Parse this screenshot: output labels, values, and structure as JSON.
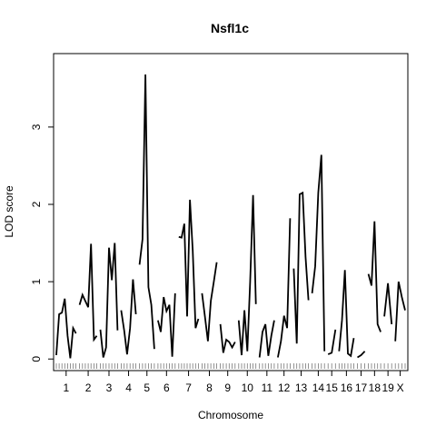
{
  "chart_data": {
    "type": "line",
    "title": "Nsfl1c",
    "xlabel": "Chromosome",
    "ylabel": "LOD score",
    "ylim": [
      -0.15,
      3.95
    ],
    "yticks": [
      0,
      1,
      2,
      3
    ],
    "grid": false,
    "chromosomes": [
      {
        "label": "1",
        "lods": [
          0.05,
          0.58,
          0.6,
          0.78,
          0.3,
          0.01,
          0.4,
          0.33
        ]
      },
      {
        "label": "2",
        "lods": [
          0.7,
          0.83,
          0.75,
          0.67,
          1.49,
          0.25,
          0.3
        ]
      },
      {
        "label": "3",
        "lods": [
          0.38,
          0.02,
          0.15,
          1.44,
          1.02,
          1.5,
          0.37
        ]
      },
      {
        "label": "4",
        "lods": [
          0.63,
          0.37,
          0.06,
          0.4,
          1.03,
          0.58
        ]
      },
      {
        "label": "5",
        "lods": [
          1.22,
          1.55,
          3.68,
          0.93,
          0.7,
          0.13
        ]
      },
      {
        "label": "6",
        "lods": [
          0.5,
          0.35,
          0.8,
          0.62,
          0.7,
          0.03,
          0.85
        ]
      },
      {
        "label": "7",
        "lods": [
          1.58,
          1.57,
          1.75,
          0.55,
          2.06,
          1.4,
          0.4,
          0.52
        ]
      },
      {
        "label": "8",
        "lods": [
          0.85,
          0.55,
          0.23,
          0.75,
          1.0,
          1.25
        ]
      },
      {
        "label": "9",
        "lods": [
          0.45,
          0.08,
          0.25,
          0.22,
          0.15,
          0.22
        ]
      },
      {
        "label": "10",
        "lods": [
          0.5,
          0.05,
          0.63,
          0.1,
          1.0,
          2.12,
          0.71
        ]
      },
      {
        "label": "11",
        "lods": [
          0.02,
          0.35,
          0.45,
          0.04,
          0.3,
          0.5
        ]
      },
      {
        "label": "12",
        "lods": [
          0.02,
          0.23,
          0.56,
          0.4,
          1.82
        ]
      },
      {
        "label": "13",
        "lods": [
          1.17,
          0.2,
          2.13,
          2.15,
          1.32,
          0.76
        ]
      },
      {
        "label": "14",
        "lods": [
          0.85,
          1.2,
          2.15,
          2.64,
          0.1
        ]
      },
      {
        "label": "15",
        "lods": [
          0.06,
          0.08,
          0.38
        ]
      },
      {
        "label": "16",
        "lods": [
          0.1,
          0.5,
          1.15,
          0.07,
          0.04,
          0.27
        ]
      },
      {
        "label": "17",
        "lods": [
          0.02,
          0.05,
          0.1
        ]
      },
      {
        "label": "18",
        "lods": [
          1.1,
          0.95,
          1.78,
          0.45,
          0.35
        ]
      },
      {
        "label": "19",
        "lods": [
          0.55,
          0.98,
          0.45
        ]
      },
      {
        "label": "X",
        "lods": [
          0.23,
          1.0,
          0.8,
          0.63
        ]
      }
    ]
  }
}
